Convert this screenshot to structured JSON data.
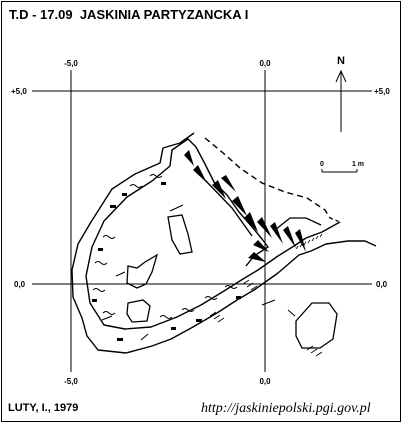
{
  "map": {
    "code": "T.D - 17.09",
    "name": "JASKINIA PARTYZANCKA I",
    "grid": {
      "x_top_left": "-5,0",
      "x_top_right": "0,0",
      "x_bottom_left": "-5,0",
      "x_bottom_right": "0,0",
      "y_upper_left": "+5,0",
      "y_upper_right": "+5,0",
      "y_lower_left": "0,0",
      "y_lower_right": "0,0"
    },
    "north": "N",
    "scale": {
      "start": "0",
      "end": "1 m"
    },
    "author": "LUTY, I., 1979",
    "source_url": "http://jaskiniepolski.pgi.gov.pl"
  },
  "colors": {
    "ink": "#000000",
    "paper": "#ffffff"
  }
}
